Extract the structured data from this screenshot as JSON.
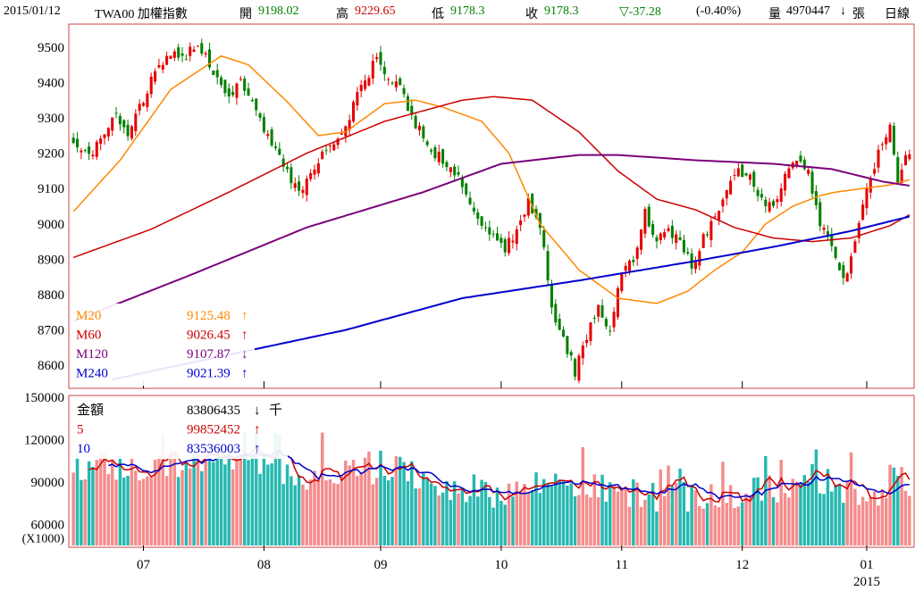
{
  "header": {
    "date": "2015/01/12",
    "symbol": "TWA00 加權指數",
    "open_label": "開",
    "open": "9198.02",
    "high_label": "高",
    "high": "9229.65",
    "low_label": "低",
    "low": "9178.3",
    "close_label": "收",
    "close": "9178.3",
    "change": "▽-37.28",
    "change_pct": "(-0.40%)",
    "volume_label": "量",
    "volume": "4970447",
    "volume_arrow": "↓",
    "volume_unit": "張",
    "period": "日線"
  },
  "colors": {
    "up": "#e60000",
    "down": "#008000",
    "ma20": "#ff8800",
    "ma60": "#cc0000",
    "ma120": "#7a007a",
    "ma240": "#0000cc",
    "vol_up": "#f48c8c",
    "vol_down": "#26b8b0",
    "frame": "#cc4444"
  },
  "chart_data": [
    {
      "type": "candlestick",
      "y_ticks": [
        "9500",
        "9400",
        "9300",
        "9200",
        "9100",
        "9000",
        "8900",
        "8800",
        "8700",
        "8600"
      ],
      "ylim": [
        8540,
        9560
      ],
      "x_labels": [
        "07",
        "08",
        "09",
        "10",
        "11",
        "12",
        "01"
      ],
      "x_sublabel": "2015",
      "legend": [
        {
          "name": "M20",
          "value": "9125.48",
          "arrow": "↑"
        },
        {
          "name": "M60",
          "value": "9026.45",
          "arrow": "↑"
        },
        {
          "name": "M120",
          "value": "9107.87",
          "arrow": "↓"
        },
        {
          "name": "M240",
          "value": "9021.39",
          "arrow": "↑"
        }
      ],
      "ma_anchors": {
        "M20": [
          [
            0,
            9035
          ],
          [
            12,
            9180
          ],
          [
            25,
            9380
          ],
          [
            38,
            9475
          ],
          [
            45,
            9450
          ],
          [
            55,
            9345
          ],
          [
            63,
            9250
          ],
          [
            70,
            9260
          ],
          [
            80,
            9340
          ],
          [
            88,
            9350
          ],
          [
            95,
            9330
          ],
          [
            105,
            9290
          ],
          [
            112,
            9200
          ],
          [
            120,
            9000
          ],
          [
            130,
            8870
          ],
          [
            140,
            8790
          ],
          [
            150,
            8775
          ],
          [
            158,
            8810
          ],
          [
            165,
            8870
          ],
          [
            172,
            8920
          ],
          [
            178,
            9000
          ],
          [
            185,
            9050
          ],
          [
            192,
            9080
          ],
          [
            196,
            9090
          ],
          [
            203,
            9100
          ],
          [
            210,
            9110
          ],
          [
            215,
            9125
          ]
        ],
        "M60": [
          [
            0,
            8905
          ],
          [
            20,
            8985
          ],
          [
            40,
            9090
          ],
          [
            60,
            9200
          ],
          [
            80,
            9290
          ],
          [
            100,
            9350
          ],
          [
            108,
            9360
          ],
          [
            118,
            9350
          ],
          [
            130,
            9260
          ],
          [
            140,
            9150
          ],
          [
            150,
            9070
          ],
          [
            160,
            9040
          ],
          [
            170,
            8990
          ],
          [
            180,
            8960
          ],
          [
            190,
            8950
          ],
          [
            200,
            8960
          ],
          [
            210,
            8995
          ],
          [
            215,
            9026
          ]
        ],
        "M120": [
          [
            0,
            8725
          ],
          [
            30,
            8855
          ],
          [
            60,
            8990
          ],
          [
            90,
            9090
          ],
          [
            110,
            9170
          ],
          [
            130,
            9195
          ],
          [
            140,
            9195
          ],
          [
            160,
            9180
          ],
          [
            180,
            9170
          ],
          [
            195,
            9155
          ],
          [
            208,
            9120
          ],
          [
            215,
            9108
          ]
        ],
        "M240": [
          [
            10,
            8560
          ],
          [
            40,
            8630
          ],
          [
            70,
            8700
          ],
          [
            100,
            8790
          ],
          [
            130,
            8840
          ],
          [
            160,
            8895
          ],
          [
            180,
            8935
          ],
          [
            200,
            8980
          ],
          [
            215,
            9021
          ]
        ]
      }
    },
    {
      "type": "bar",
      "y_ticks": [
        "150000",
        "120000",
        "90000",
        "60000"
      ],
      "y_unit": "(X1000)",
      "ylim": [
        45000,
        150000
      ],
      "legend": [
        {
          "name": "金額",
          "value": "83806435",
          "arrow": "↓",
          "unit": "千"
        },
        {
          "name": "5",
          "value": "99852452",
          "arrow": "↑"
        },
        {
          "name": "10",
          "value": "83536003",
          "arrow": "↑"
        }
      ]
    }
  ]
}
